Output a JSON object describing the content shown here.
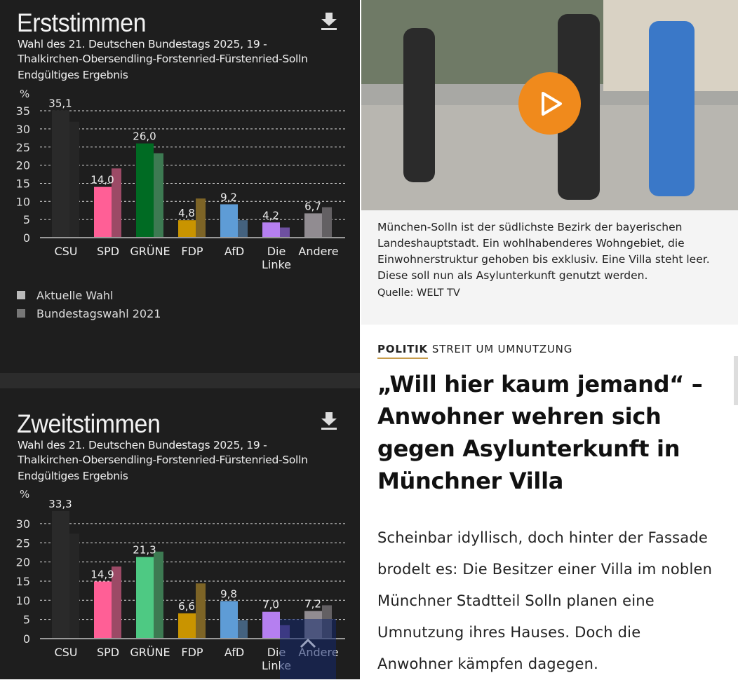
{
  "charts_panel": {
    "download_icon": "download-icon"
  },
  "legend": [
    "Aktuelle Wahl",
    "Bundestagswahl 2021"
  ],
  "chart_data": [
    {
      "type": "bar",
      "title": "Erststimmen",
      "subtitle": [
        "Wahl des 21. Deutschen Bundestags 2025, 19 -",
        "Thalkirchen-Obersendling-Forstenried-Fürstenried-Solln",
        "Endgültiges Ergebnis"
      ],
      "ylabel": "%",
      "ylim": [
        0,
        35
      ],
      "yticks": [
        0,
        5,
        10,
        15,
        20,
        25,
        30,
        35
      ],
      "grid": true,
      "legend_position": "bottom-left",
      "categories": [
        "CSU",
        "SPD",
        "GRÜNE",
        "FDP",
        "AfD",
        "Die Linke",
        "Andere"
      ],
      "series": [
        {
          "name": "Aktuelle Wahl",
          "values": [
            35.1,
            14.0,
            26.0,
            4.8,
            9.2,
            4.2,
            6.7
          ],
          "labels": [
            "35,1",
            "14,0",
            "26,0",
            "4,8",
            "9,2",
            "4,2",
            "6,7"
          ]
        },
        {
          "name": "Bundestagswahl 2021",
          "values": [
            32.0,
            19.1,
            23.3,
            10.8,
            4.8,
            2.8,
            8.4
          ]
        }
      ],
      "colors": [
        "#2a2a2a",
        "#ff5f96",
        "#006b23",
        "#c99400",
        "#5e9cd6",
        "#b57ff0",
        "#918c91"
      ],
      "colors_2021": [
        "#262626",
        "#9c4a66",
        "#3d7a52",
        "#7d6426",
        "#44627f",
        "#6e50a0",
        "#636063"
      ]
    },
    {
      "type": "bar",
      "title": "Zweitstimmen",
      "subtitle": [
        "Wahl des 21. Deutschen Bundestags 2025, 19 -",
        "Thalkirchen-Obersendling-Forstenried-Fürstenried-Solln",
        "Endgültiges Ergebnis"
      ],
      "ylabel": "%",
      "ylim": [
        0,
        33.3
      ],
      "yticks": [
        0,
        5,
        10,
        15,
        20,
        25,
        30
      ],
      "grid": true,
      "categories": [
        "CSU",
        "SPD",
        "GRÜNE",
        "FDP",
        "AfD",
        "Die Linke",
        "Andere"
      ],
      "series": [
        {
          "name": "Aktuelle Wahl",
          "values": [
            33.3,
            14.9,
            21.3,
            6.6,
            9.8,
            7.0,
            7.2
          ],
          "labels": [
            "33,3",
            "14,9",
            "21,3",
            "6,6",
            "9,8",
            "7,0",
            "7,2"
          ]
        },
        {
          "name": "Bundestagswahl 2021",
          "values": [
            27.4,
            18.8,
            22.7,
            14.4,
            4.8,
            3.5,
            8.7
          ]
        }
      ],
      "colors": [
        "#2a2a2a",
        "#ff5f96",
        "#4ec983",
        "#c99400",
        "#5e9cd6",
        "#b57ff0",
        "#918c91"
      ],
      "colors_2021": [
        "#262626",
        "#9c4a66",
        "#3d7a52",
        "#7d6426",
        "#44627f",
        "#6e50a0",
        "#636063"
      ]
    }
  ],
  "video": {
    "play_icon": "play-icon",
    "caption": "München-Solln ist der südlichste Bezirk der bayerischen Landeshauptstadt. Ein wohlhabenderes Wohngebiet, die Einwohnerstruktur gehoben bis exklusiv. Eine Villa steht leer. Diese soll nun als Asylunterkunft genutzt werden.",
    "source": "Quelle: WELT TV"
  },
  "article": {
    "section": "POLITIK",
    "kicker": "STREIT UM UMNUTZUNG",
    "headline": "„Will hier kaum jemand“ – Anwohner wehren sich gegen Asylunterkunft in Münchner Villa",
    "intro": "Scheinbar idyllisch, doch hinter der Fassade brodelt es: Die Besitzer einer Villa im noblen Münchner Stadtteil Solln planen eine Umnutzung ihres Hauses. Doch die Anwohner kämpfen dagegen."
  },
  "accent": "#f08a1c"
}
